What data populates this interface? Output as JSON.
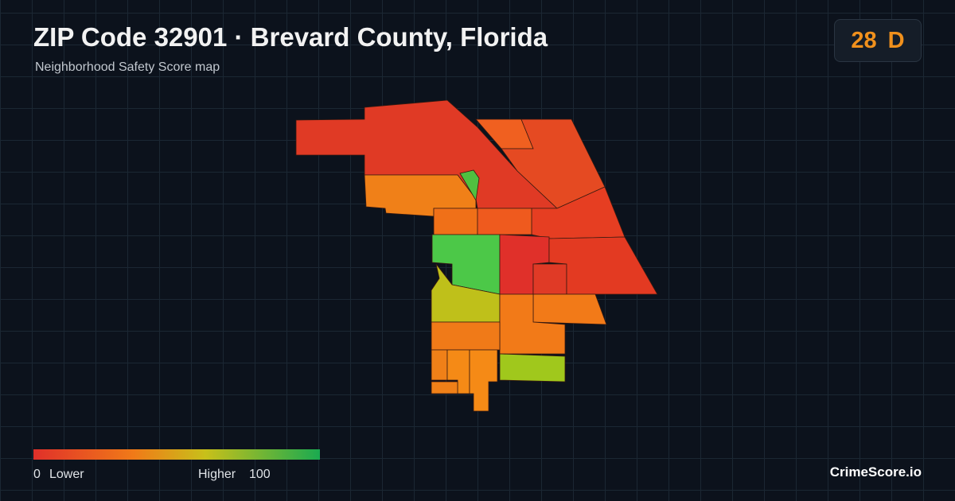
{
  "header": {
    "title": "ZIP Code 32901 · Brevard County, Florida",
    "subtitle": "Neighborhood Safety Score map"
  },
  "score": {
    "value": 28,
    "grade": "D"
  },
  "legend": {
    "min": 0,
    "min_label": "Lower",
    "max_label": "Higher",
    "max": 100
  },
  "brand": "CrimeScore.io"
}
